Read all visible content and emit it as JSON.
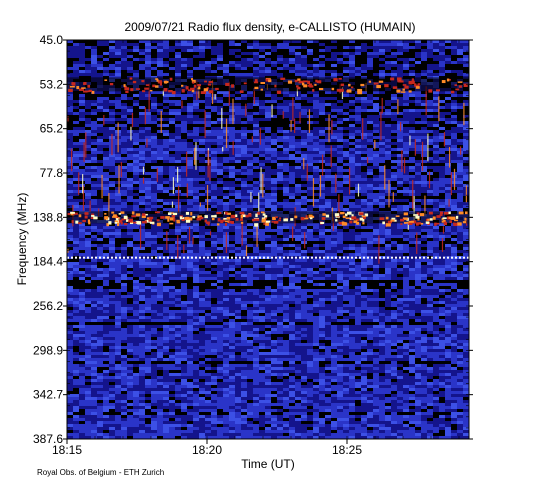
{
  "chart_data": {
    "type": "heatmap",
    "title": "2009/07/21  Radio flux density, e-CALLISTO (HUMAIN)",
    "xlabel": "Time (UT)",
    "ylabel": "Frequency (MHz)",
    "x_ticks": [
      "18:15",
      "18:20",
      "18:25"
    ],
    "y_ticks": [
      "45.0",
      "53.2",
      "65.2",
      "77.8",
      "138.8",
      "184.4",
      "256.2",
      "298.9",
      "342.7",
      "387.6"
    ],
    "colormap": [
      "#000000",
      "#14148c",
      "#2a34c8",
      "#3c50e6",
      "#c8281e",
      "#ff8c28",
      "#ffffc8"
    ],
    "bright_bands": [
      {
        "freq_label": "53.2",
        "strength": "medium"
      },
      {
        "freq_label": "138.8",
        "strength": "high"
      },
      {
        "freq_label": "184.4",
        "strength": "dotted line"
      }
    ],
    "grid": false,
    "legend": "none"
  },
  "footer": {
    "credit": "Royal Obs. of Belgium - ETH Zurich"
  }
}
